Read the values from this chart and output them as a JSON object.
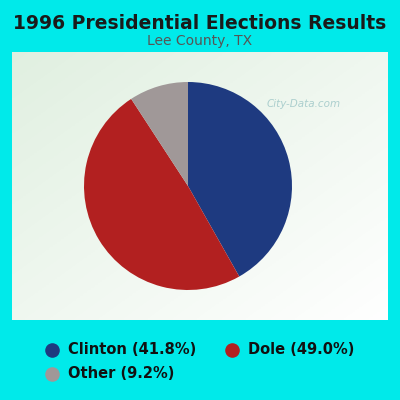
{
  "title": "1996 Presidential Elections Results",
  "subtitle": "Lee County, TX",
  "slices": [
    41.8,
    49.0,
    9.2
  ],
  "labels": [
    "Clinton (41.8%)",
    "Dole (49.0%)",
    "Other (9.2%)"
  ],
  "colors": [
    "#1e3a80",
    "#b22020",
    "#a09898"
  ],
  "background_color": "#00eaea",
  "title_fontsize": 13.5,
  "subtitle_fontsize": 10,
  "legend_fontsize": 10.5,
  "startangle": 90,
  "watermark": "City-Data.com",
  "watermark_color": "#a0c8c8"
}
